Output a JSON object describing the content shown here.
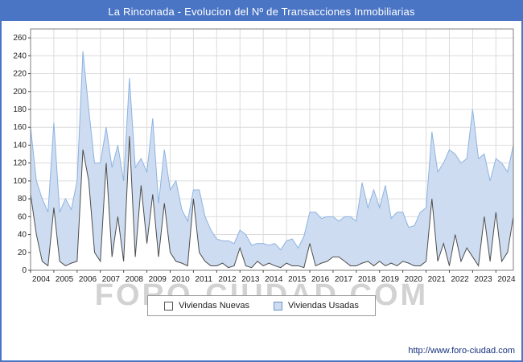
{
  "chart_data": {
    "type": "area",
    "stacked": true,
    "title": "La Rinconada - Evolucion del Nº de Transacciones Inmobiliarias",
    "x_years": [
      "2004",
      "2005",
      "2006",
      "2007",
      "2008",
      "2009",
      "2010",
      "2011",
      "2012",
      "2013",
      "2014",
      "2015",
      "2016",
      "2017",
      "2018",
      "2019",
      "2020",
      "2021",
      "2022",
      "2023",
      "2024"
    ],
    "points_per_year": 4,
    "ylim": [
      0,
      270
    ],
    "yticks": [
      0,
      20,
      40,
      60,
      80,
      100,
      120,
      140,
      160,
      180,
      200,
      220,
      240,
      260
    ],
    "grid": true,
    "legend_position": "bottom",
    "series": [
      {
        "name": "Viviendas Nuevas",
        "color": "#ffffff",
        "line_color": "#4d4d4d",
        "values": [
          85,
          40,
          10,
          5,
          70,
          10,
          5,
          8,
          10,
          135,
          100,
          20,
          10,
          120,
          15,
          60,
          10,
          150,
          15,
          95,
          30,
          85,
          15,
          75,
          20,
          10,
          8,
          5,
          80,
          20,
          10,
          5,
          5,
          8,
          3,
          5,
          25,
          5,
          3,
          10,
          5,
          8,
          5,
          3,
          8,
          5,
          5,
          3,
          30,
          5,
          8,
          10,
          15,
          15,
          10,
          5,
          5,
          8,
          10,
          5,
          10,
          5,
          8,
          5,
          10,
          8,
          5,
          5,
          10,
          80,
          10,
          30,
          5,
          40,
          10,
          25,
          15,
          5,
          60,
          10,
          65,
          10,
          20,
          60
        ]
      },
      {
        "name": "Viviendas Usadas",
        "color": "#cddcf0",
        "line_color": "#8db3e2",
        "values": [
          75,
          60,
          70,
          60,
          95,
          55,
          75,
          60,
          90,
          110,
          80,
          100,
          110,
          40,
          100,
          80,
          90,
          65,
          100,
          30,
          80,
          85,
          60,
          60,
          70,
          90,
          60,
          50,
          10,
          70,
          50,
          40,
          30,
          25,
          30,
          25,
          20,
          35,
          25,
          20,
          25,
          20,
          25,
          20,
          25,
          30,
          20,
          35,
          35,
          60,
          50,
          50,
          45,
          40,
          50,
          55,
          50,
          90,
          60,
          85,
          60,
          90,
          50,
          60,
          55,
          40,
          45,
          60,
          60,
          75,
          100,
          90,
          130,
          90,
          110,
          100,
          165,
          120,
          70,
          90,
          60,
          110,
          90,
          80
        ]
      }
    ]
  },
  "watermark": "FORO-CIUDAD.COM",
  "footer": {
    "url": "http://www.foro-ciudad.com"
  },
  "colors": {
    "accent": "#4a74c4",
    "grid": "#dcdcdc",
    "plot_border": "#7f7f7f"
  }
}
